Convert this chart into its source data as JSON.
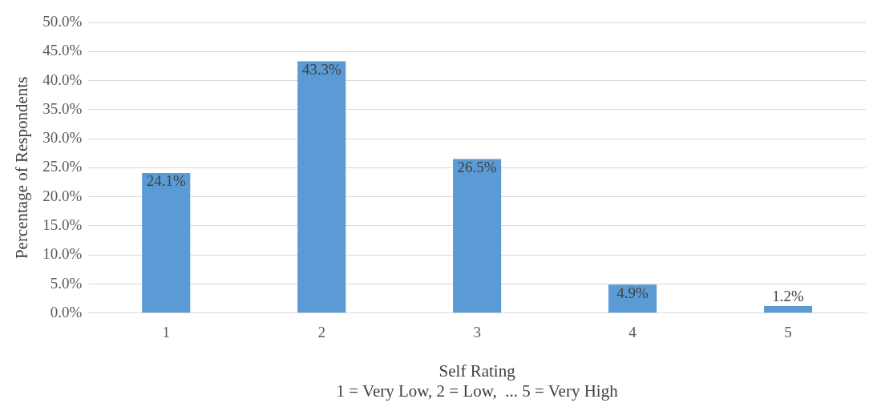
{
  "chart_data": {
    "type": "bar",
    "categories": [
      "1",
      "2",
      "3",
      "4",
      "5"
    ],
    "values": [
      24.1,
      43.3,
      26.5,
      4.9,
      1.2
    ],
    "value_labels": [
      "24.1%",
      "43.3%",
      "26.5%",
      "4.9%",
      "1.2%"
    ],
    "color": "#5b9bd5",
    "xlabel": "Self Rating",
    "ylabel": "Percentage of Respondents",
    "annotations": [
      "1 = Very Low, 2 = Low,  ... 5 = Very High"
    ],
    "ylim": [
      0,
      50
    ],
    "yticks": [
      {
        "value": 0,
        "label": "0.0%"
      },
      {
        "value": 5,
        "label": "5.0%"
      },
      {
        "value": 10,
        "label": "10.0%"
      },
      {
        "value": 15,
        "label": "15.0%"
      },
      {
        "value": 20,
        "label": "20.0%"
      },
      {
        "value": 25,
        "label": "25.0%"
      },
      {
        "value": 30,
        "label": "30.0%"
      },
      {
        "value": 35,
        "label": "35.0%"
      },
      {
        "value": 40,
        "label": "40.0%"
      },
      {
        "value": 45,
        "label": "45.0%"
      },
      {
        "value": 50,
        "label": "50.0%"
      }
    ],
    "grid": "y",
    "legend": false
  }
}
